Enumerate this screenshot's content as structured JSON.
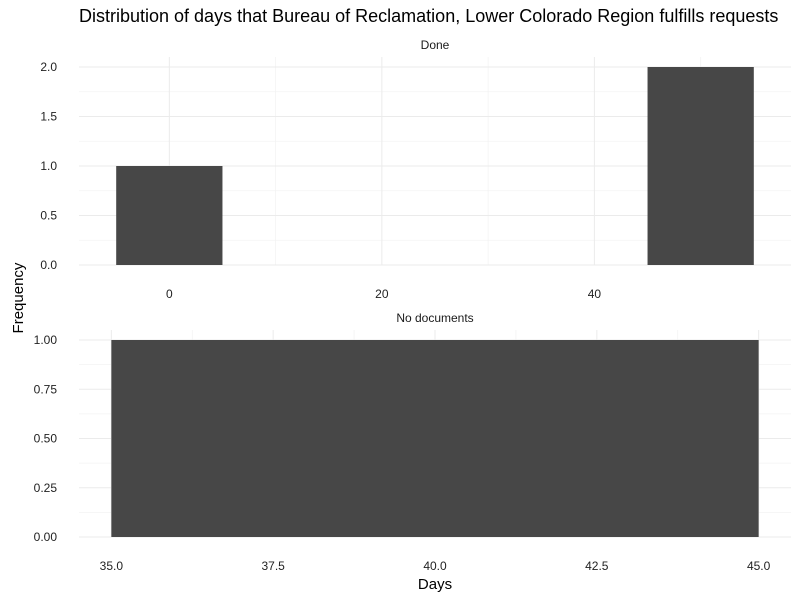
{
  "chart_data": {
    "type": "bar",
    "title": "Distribution of days that Bureau of Reclamation, Lower Colorado Region fulfills requests",
    "xlabel": "Days",
    "ylabel": "Frequency",
    "grid": true,
    "panels": [
      {
        "strip": "Done",
        "x_ticks": [
          "0",
          "20",
          "40"
        ],
        "x_tick_values": [
          0,
          20,
          40
        ],
        "xlim": [
          -8.5,
          58.5
        ],
        "y_ticks": [
          "0.0",
          "0.5",
          "1.0",
          "1.5",
          "2.0"
        ],
        "y_tick_values": [
          0,
          0.5,
          1,
          1.5,
          2
        ],
        "ylim": [
          0,
          2
        ],
        "bins": [
          {
            "x0": -5,
            "x1": 5,
            "value": 1
          },
          {
            "x0": 45,
            "x1": 55,
            "value": 2
          }
        ]
      },
      {
        "strip": "No documents",
        "x_ticks": [
          "35.0",
          "37.5",
          "40.0",
          "42.5",
          "45.0"
        ],
        "x_tick_values": [
          35,
          37.5,
          40,
          42.5,
          45
        ],
        "xlim": [
          34.5,
          45.5
        ],
        "y_ticks": [
          "0.00",
          "0.25",
          "0.50",
          "0.75",
          "1.00"
        ],
        "y_tick_values": [
          0,
          0.25,
          0.5,
          0.75,
          1
        ],
        "ylim": [
          0,
          1
        ],
        "bins": [
          {
            "x0": 35,
            "x1": 45,
            "value": 1
          }
        ]
      }
    ],
    "colors": {
      "bar": "#474747",
      "grid_major": "#ebebeb",
      "grid_minor": "#f3f3f3"
    }
  }
}
